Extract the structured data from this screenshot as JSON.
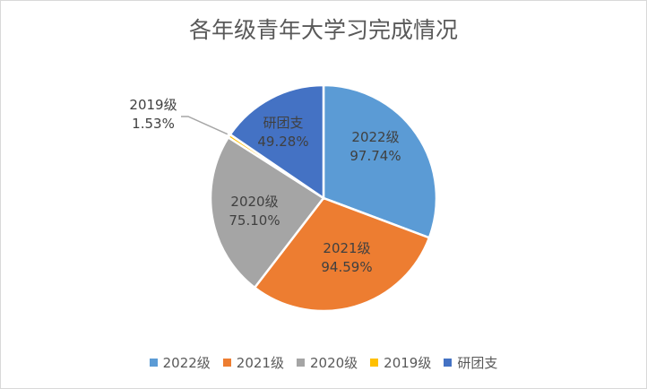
{
  "chart_data": {
    "type": "pie",
    "title": "各年级青年大学习完成情况",
    "categories": [
      "2022级",
      "2021级",
      "2020级",
      "2019级",
      "研团支"
    ],
    "values": [
      97.74,
      94.59,
      75.1,
      1.53,
      49.28
    ],
    "data_labels": [
      "97.74%",
      "94.59%",
      "75.10%",
      "1.53%",
      "49.28%"
    ],
    "colors": [
      "#5b9bd5",
      "#ed7d31",
      "#a5a5a5",
      "#ffc000",
      "#4472c4"
    ],
    "legend_position": "bottom"
  }
}
